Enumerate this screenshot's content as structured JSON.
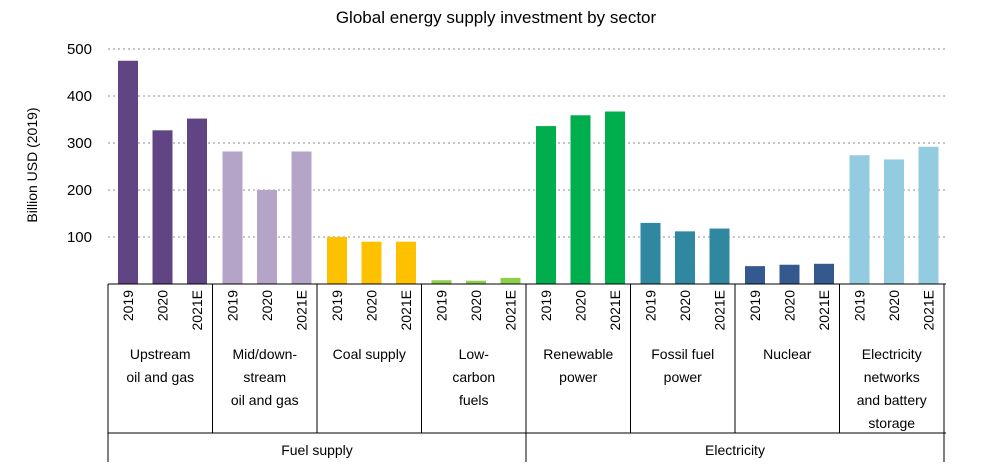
{
  "chart_data": {
    "type": "bar",
    "title": "Global energy supply investment by sector",
    "ylabel": "Billion USD (2019)",
    "ylim": [
      0,
      500
    ],
    "yticks": [
      100,
      200,
      300,
      400,
      500
    ],
    "grid": true,
    "years": [
      "2019",
      "2020",
      "2021E"
    ],
    "groups": [
      {
        "label": "Fuel supply",
        "categories": [
          {
            "name": "Upstream oil and gas",
            "lines": [
              "Upstream",
              "oil and gas"
            ],
            "color": "#614483",
            "values": [
              475,
              327,
              352
            ]
          },
          {
            "name": "Mid/downstream oil and gas",
            "lines": [
              "Mid/down-",
              "stream",
              "oil and gas"
            ],
            "color": "#b3a4c8",
            "values": [
              282,
              200,
              282
            ]
          },
          {
            "name": "Coal supply",
            "lines": [
              "Coal supply"
            ],
            "color": "#fdc100",
            "values": [
              100,
              90,
              90
            ]
          },
          {
            "name": "Low-carbon fuels",
            "lines": [
              "Low-",
              "carbon",
              "fuels"
            ],
            "color": "#8ece4d",
            "values": [
              8,
              7,
              13
            ]
          }
        ]
      },
      {
        "label": "Electricity",
        "categories": [
          {
            "name": "Renewable power",
            "lines": [
              "Renewable",
              "power"
            ],
            "color": "#00ae4d",
            "values": [
              336,
              359,
              367
            ]
          },
          {
            "name": "Fossil fuel power",
            "lines": [
              "Fossil fuel",
              "power"
            ],
            "color": "#2f87a0",
            "values": [
              130,
              112,
              118
            ]
          },
          {
            "name": "Nuclear",
            "lines": [
              "Nuclear"
            ],
            "color": "#34598f",
            "values": [
              38,
              41,
              43
            ]
          },
          {
            "name": "Electricity networks and battery storage",
            "lines": [
              "Electricity",
              "networks",
              "and battery",
              "storage"
            ],
            "color": "#93cce0",
            "values": [
              274,
              265,
              292
            ]
          }
        ]
      }
    ]
  }
}
